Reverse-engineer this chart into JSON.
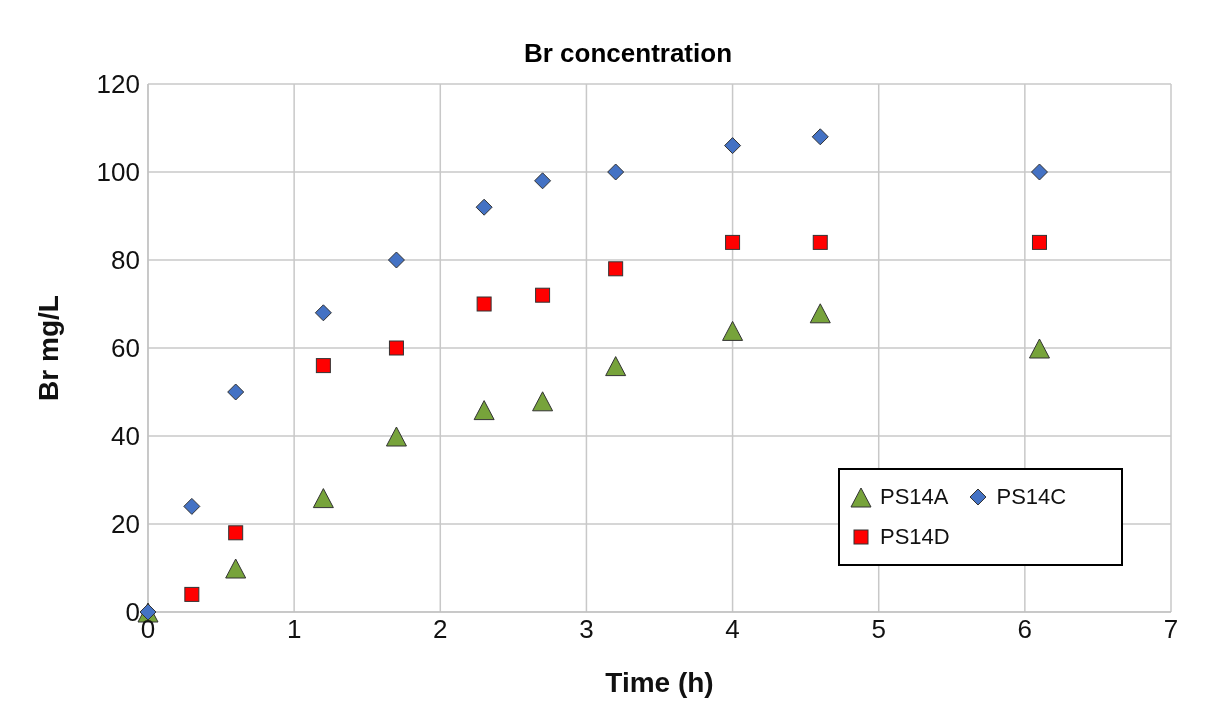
{
  "chart_data": {
    "type": "scatter",
    "title": "Br concentration",
    "xlabel": "Time (h)",
    "ylabel": "Br mg/L",
    "xlim": [
      0,
      7
    ],
    "xticks": [
      0,
      1,
      2,
      3,
      4,
      5,
      6,
      7
    ],
    "ylim": [
      0,
      120
    ],
    "yticks": [
      0,
      20,
      40,
      60,
      80,
      100,
      120
    ],
    "grid": true,
    "legend": "bottom right",
    "series": [
      {
        "name": "PS14A",
        "color": "#77a33b",
        "marker": "triangle",
        "x": [
          0,
          0.6,
          1.2,
          1.7,
          2.3,
          2.7,
          3.2,
          4,
          4.6,
          6.1
        ],
        "values": [
          0,
          10,
          26,
          40,
          46,
          48,
          56,
          64,
          68,
          60
        ]
      },
      {
        "name": "PS14C",
        "color": "#4472c4",
        "marker": "diamond",
        "x": [
          0,
          0.3,
          0.6,
          1.2,
          1.7,
          2.3,
          2.7,
          3.2,
          4,
          4.6,
          6.1
        ],
        "values": [
          0,
          24,
          50,
          68,
          80,
          92,
          98,
          100,
          106,
          108,
          100
        ]
      },
      {
        "name": "PS14D",
        "color": "#ff0000",
        "marker": "square",
        "x": [
          0.3,
          0.6,
          1.2,
          1.7,
          2.3,
          2.7,
          3.2,
          4,
          4.6,
          6.1
        ],
        "values": [
          4,
          18,
          56,
          60,
          70,
          72,
          78,
          84,
          84,
          84
        ]
      }
    ]
  }
}
